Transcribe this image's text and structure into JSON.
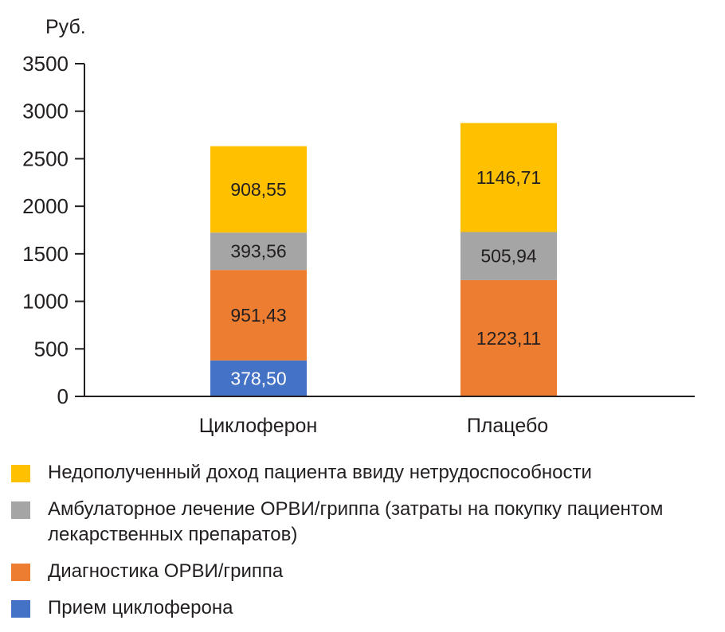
{
  "chart_data": {
    "type": "bar",
    "stacked": true,
    "ylabel": "Руб.",
    "ylim": [
      0,
      3500
    ],
    "yticks": [
      "0",
      "500",
      "1000",
      "1500",
      "2000",
      "2500",
      "3000",
      "3500"
    ],
    "categories": [
      "Циклоферон",
      "Плацебо"
    ],
    "series": [
      {
        "name": "Прием циклоферона",
        "color": "#4472c4",
        "label_color": "#ffffff",
        "values": [
          378.5,
          0
        ],
        "labels": [
          "378,50",
          ""
        ]
      },
      {
        "name": "Диагностика ОРВИ/гриппа",
        "color": "#ed7d31",
        "label_color": "#231f20",
        "values": [
          951.43,
          1223.11
        ],
        "labels": [
          "951,43",
          "1223,11"
        ]
      },
      {
        "name": "Амбулаторное лечение ОРВИ/гриппа (затраты на покупку пациентом лекарственных препаратов)",
        "color": "#a5a5a5",
        "label_color": "#231f20",
        "values": [
          393.56,
          505.94
        ],
        "labels": [
          "393,56",
          "505,94"
        ]
      },
      {
        "name": "Недополученный доход пациента ввиду нетрудоспособности",
        "color": "#ffc000",
        "label_color": "#231f20",
        "values": [
          908.55,
          1146.71
        ],
        "labels": [
          "908,55",
          "1146,71"
        ]
      }
    ],
    "legend_position": "bottom"
  },
  "legend": [
    {
      "label": "Недополученный доход пациента ввиду нетрудоспособности",
      "color": "#ffc000"
    },
    {
      "label": "Амбулаторное лечение ОРВИ/гриппа (затраты на покупку пациентом лекарственных препаратов)",
      "color": "#a5a5a5"
    },
    {
      "label": "Диагностика ОРВИ/гриппа",
      "color": "#ed7d31"
    },
    {
      "label": "Прием циклоферона",
      "color": "#4472c4"
    }
  ]
}
